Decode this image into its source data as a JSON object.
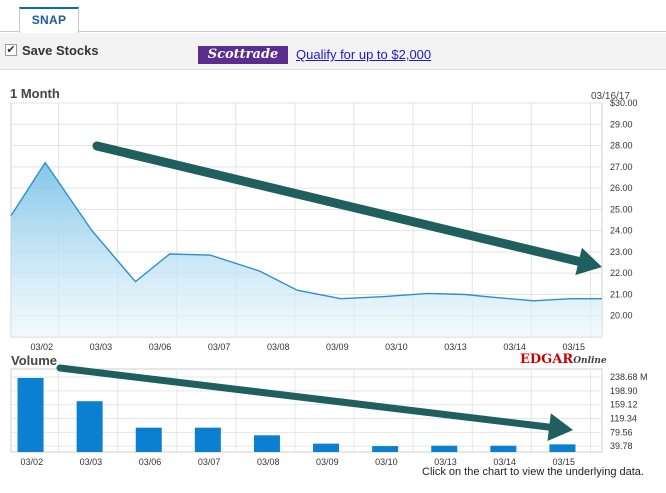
{
  "tabs": [
    {
      "label": "SNAP"
    }
  ],
  "toolbar": {
    "save_label": "Save Stocks",
    "save_checked": true,
    "ad_logo": "Scottrade",
    "ad_link": "Qualify for up to $2,000"
  },
  "chart_header": {
    "title": "1 Month",
    "date": "03/16/17",
    "volume_title": "Volume",
    "edgar_main": "EDGAR",
    "edgar_sub": "Online",
    "footnote": "Click on the chart to view the underlying data."
  },
  "colors": {
    "accent": "#0b6aa8",
    "area_fill": "#7cc3e8",
    "bar": "#0b7fd0",
    "arrow": "#1f5f5f"
  },
  "chart_data": [
    {
      "type": "area",
      "title": "1 Month",
      "categories": [
        "03/02",
        "03/03",
        "03/06",
        "03/07",
        "03/08",
        "03/09",
        "03/10",
        "03/13",
        "03/14",
        "03/15"
      ],
      "y_tick_labels": [
        "$30.00",
        "29.00",
        "28.00",
        "27.00",
        "26.00",
        "25.00",
        "24.00",
        "23.00",
        "22.00",
        "21.00",
        "20.00"
      ],
      "ylim": [
        19.0,
        30.0
      ],
      "series": [
        {
          "x": [
            0,
            0.55,
            1.3,
            2.0,
            2.55,
            3.2,
            4.0,
            4.6,
            5.3,
            6.0,
            6.7,
            7.3,
            7.8,
            8.4,
            9.0,
            9.5
          ],
          "values": [
            24.7,
            27.2,
            24.0,
            21.6,
            22.9,
            22.85,
            22.1,
            21.2,
            20.8,
            20.9,
            21.05,
            21.0,
            20.85,
            20.7,
            20.8,
            20.8
          ]
        }
      ],
      "grid": true
    },
    {
      "type": "bar",
      "title": "Volume",
      "categories": [
        "03/02",
        "03/03",
        "03/06",
        "03/07",
        "03/08",
        "03/09",
        "03/10",
        "03/13",
        "03/14",
        "03/15"
      ],
      "values": [
        213.0,
        146.0,
        70.0,
        70.0,
        48.0,
        24.0,
        17.0,
        18.0,
        18.0,
        22.0
      ],
      "y_tick_labels": [
        "238.68 M",
        "198.90",
        "159.12",
        "119.34",
        "79.56",
        "39.78"
      ],
      "ylim": [
        0,
        238.68
      ],
      "grid": true
    }
  ]
}
